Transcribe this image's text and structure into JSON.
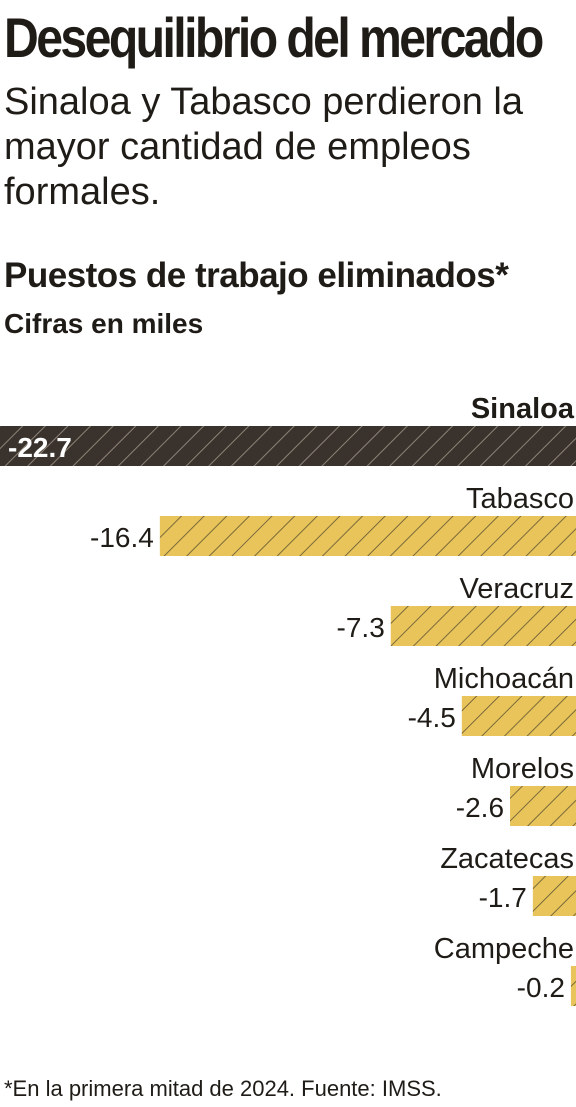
{
  "header": {
    "title": "Desequilibrio del mercado",
    "subtitle": "Sinaloa y Tabasco perdieron la mayor cantidad de empleos formales."
  },
  "chart_data": {
    "type": "bar",
    "orientation": "horizontal",
    "title": "Puestos de trabajo eliminados*",
    "subtitle": "Cifras en miles",
    "categories": [
      "Sinaloa",
      "Tabasco",
      "Veracruz",
      "Michoacán",
      "Morelos",
      "Zacatecas",
      "Campeche"
    ],
    "values": [
      -22.7,
      -16.4,
      -7.3,
      -4.5,
      -2.6,
      -1.7,
      -0.2
    ],
    "value_labels": [
      "-22.7",
      "-16.4",
      "-7.3",
      "-4.5",
      "-2.6",
      "-1.7",
      "-0.2"
    ],
    "highlight_index": 0,
    "colors": {
      "highlight": "#3a332d",
      "default": "#e8c45a",
      "hatch": "#7a6a3a",
      "text": "#1f1b17"
    },
    "xlim": [
      -22.7,
      0
    ],
    "grid": false,
    "legend": "none"
  },
  "footnote": "*En la primera mitad de 2024. Fuente: IMSS."
}
